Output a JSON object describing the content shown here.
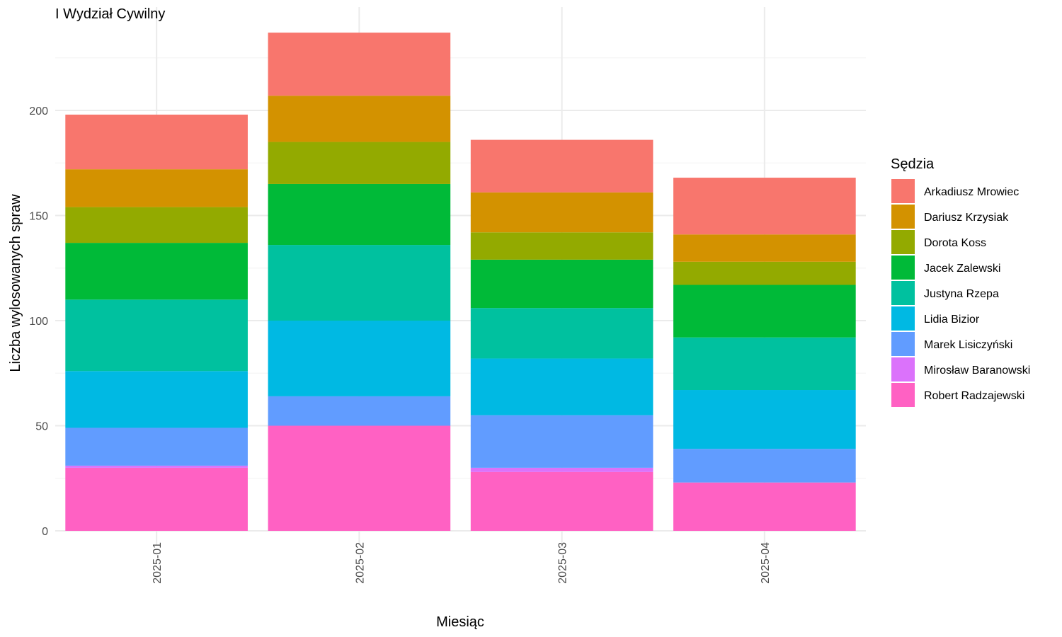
{
  "chart_data": {
    "type": "bar",
    "stacked": true,
    "title": "I Wydział Cywilny",
    "xlabel": "Miesiąc",
    "ylabel": "Liczba wylosowanych spraw",
    "categories": [
      "2025-01",
      "2025-02",
      "2025-03",
      "2025-04"
    ],
    "ylim": [
      0,
      240
    ],
    "yticks": [
      0,
      50,
      100,
      150,
      200
    ],
    "grid": true,
    "legend": {
      "title": "Sędzia",
      "position": "right"
    },
    "series": [
      {
        "name": "Robert Radzajewski",
        "color": "#FF61C3",
        "values": [
          30,
          50,
          28,
          23
        ]
      },
      {
        "name": "Mirosław Baranowski",
        "color": "#DB72FB",
        "values": [
          1,
          0,
          2,
          0
        ]
      },
      {
        "name": "Marek Lisiczyński",
        "color": "#619CFF",
        "values": [
          18,
          14,
          25,
          16
        ]
      },
      {
        "name": "Lidia Bizior",
        "color": "#00B9E3",
        "values": [
          27,
          36,
          27,
          28
        ]
      },
      {
        "name": "Justyna Rzepa",
        "color": "#00C19F",
        "values": [
          34,
          36,
          24,
          25
        ]
      },
      {
        "name": "Jacek Zalewski",
        "color": "#00BA38",
        "values": [
          27,
          29,
          23,
          25
        ]
      },
      {
        "name": "Dorota Koss",
        "color": "#93AA00",
        "values": [
          17,
          20,
          13,
          11
        ]
      },
      {
        "name": "Dariusz Krzysiak",
        "color": "#D39200",
        "values": [
          18,
          22,
          19,
          13
        ]
      },
      {
        "name": "Arkadiusz Mrowiec",
        "color": "#F8766D",
        "values": [
          26,
          30,
          25,
          27
        ]
      }
    ]
  }
}
